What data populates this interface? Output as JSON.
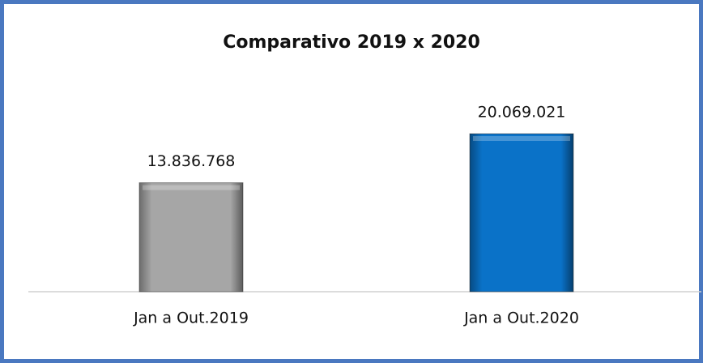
{
  "chart_data": {
    "type": "bar",
    "title": "Comparativo 2019 x 2020",
    "categories": [
      "Jan a Out.2019",
      "Jan a Out.2020"
    ],
    "values": [
      13836768,
      20069021
    ],
    "value_labels": [
      "13.836.768",
      "20.069.021"
    ],
    "colors": [
      "#a6a6a6",
      "#0a72c8"
    ]
  }
}
